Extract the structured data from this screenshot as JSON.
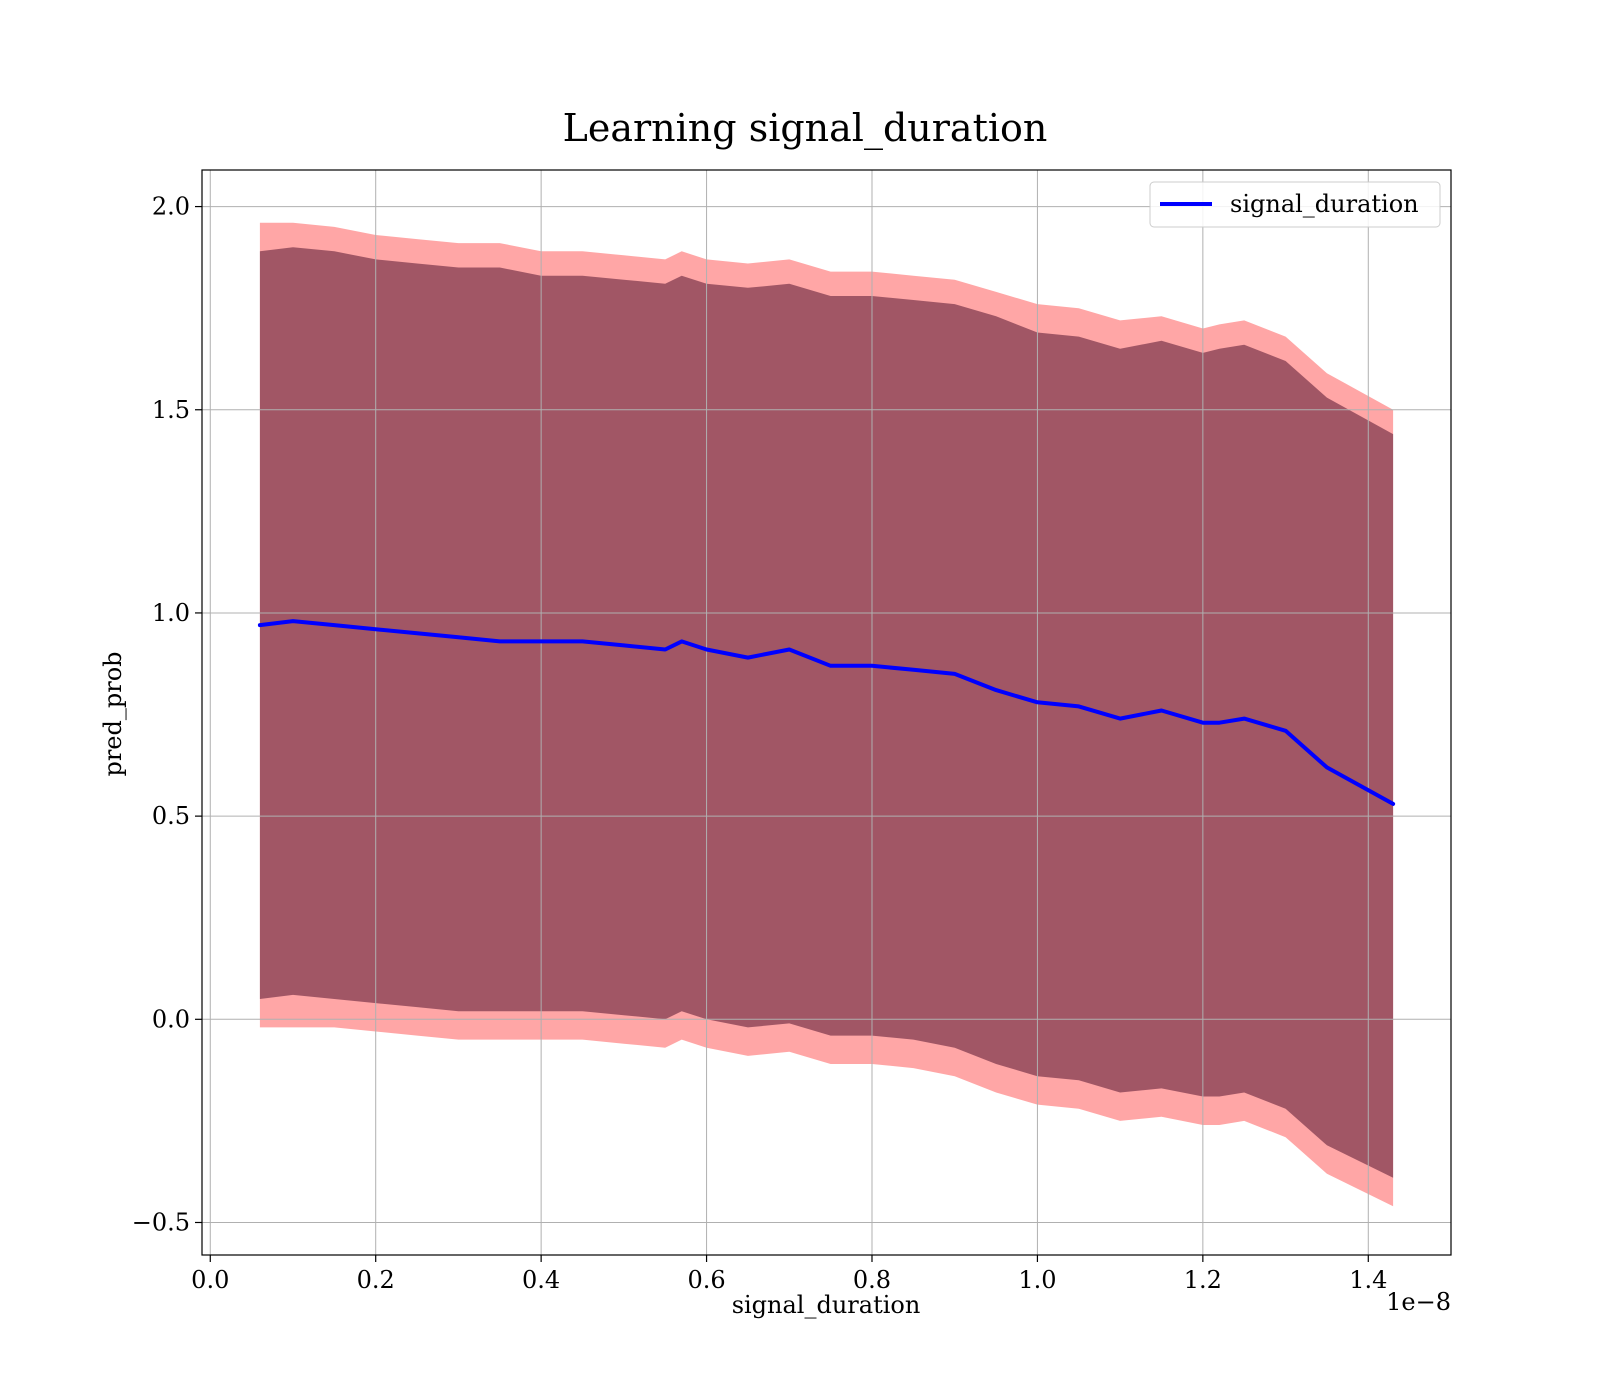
{
  "chart_data": {
    "type": "line",
    "title": "Learning signal_duration",
    "xlabel": "signal_duration",
    "ylabel": "pred_prob",
    "x_offset_label": "1e−8",
    "xlim": [
      -0.01,
      1.5
    ],
    "ylim": [
      -0.58,
      2.09
    ],
    "x_ticks": [
      0.0,
      0.2,
      0.4,
      0.6,
      0.8,
      1.0,
      1.2,
      1.4
    ],
    "x_tick_labels": [
      "0.0",
      "0.2",
      "0.4",
      "0.6",
      "0.8",
      "1.0",
      "1.2",
      "1.4"
    ],
    "y_ticks": [
      -0.5,
      0.0,
      0.5,
      1.0,
      1.5,
      2.0
    ],
    "y_tick_labels": [
      "−0.5",
      "0.0",
      "0.5",
      "1.0",
      "1.5",
      "2.0"
    ],
    "grid": true,
    "legend_position": "top-right",
    "colors": {
      "line": "#0000ff",
      "band_outer": "#ff0000",
      "band_inner": "#4b0d2a",
      "grid": "#b0b0b0"
    },
    "x": [
      0.06,
      0.1,
      0.15,
      0.2,
      0.25,
      0.3,
      0.35,
      0.4,
      0.45,
      0.5,
      0.55,
      0.57,
      0.6,
      0.65,
      0.7,
      0.75,
      0.8,
      0.85,
      0.9,
      0.95,
      1.0,
      1.05,
      1.1,
      1.15,
      1.2,
      1.22,
      1.25,
      1.3,
      1.35,
      1.43
    ],
    "series": [
      {
        "name": "signal_duration",
        "values": [
          0.97,
          0.98,
          0.97,
          0.96,
          0.95,
          0.94,
          0.93,
          0.93,
          0.93,
          0.92,
          0.91,
          0.93,
          0.91,
          0.89,
          0.91,
          0.87,
          0.87,
          0.86,
          0.85,
          0.81,
          0.78,
          0.77,
          0.74,
          0.76,
          0.73,
          0.73,
          0.74,
          0.71,
          0.62,
          0.53
        ],
        "outer_upper": [
          1.96,
          1.96,
          1.95,
          1.93,
          1.92,
          1.91,
          1.91,
          1.89,
          1.89,
          1.88,
          1.87,
          1.89,
          1.87,
          1.86,
          1.87,
          1.84,
          1.84,
          1.83,
          1.82,
          1.79,
          1.76,
          1.75,
          1.72,
          1.73,
          1.7,
          1.71,
          1.72,
          1.68,
          1.59,
          1.5
        ],
        "outer_lower": [
          -0.02,
          -0.02,
          -0.02,
          -0.03,
          -0.04,
          -0.05,
          -0.05,
          -0.05,
          -0.05,
          -0.06,
          -0.07,
          -0.05,
          -0.07,
          -0.09,
          -0.08,
          -0.11,
          -0.11,
          -0.12,
          -0.14,
          -0.18,
          -0.21,
          -0.22,
          -0.25,
          -0.24,
          -0.26,
          -0.26,
          -0.25,
          -0.29,
          -0.38,
          -0.46
        ],
        "inner_upper": [
          1.89,
          1.9,
          1.89,
          1.87,
          1.86,
          1.85,
          1.85,
          1.83,
          1.83,
          1.82,
          1.81,
          1.83,
          1.81,
          1.8,
          1.81,
          1.78,
          1.78,
          1.77,
          1.76,
          1.73,
          1.69,
          1.68,
          1.65,
          1.67,
          1.64,
          1.65,
          1.66,
          1.62,
          1.53,
          1.44
        ],
        "inner_lower": [
          0.05,
          0.06,
          0.05,
          0.04,
          0.03,
          0.02,
          0.02,
          0.02,
          0.02,
          0.01,
          0.0,
          0.02,
          0.0,
          -0.02,
          -0.01,
          -0.04,
          -0.04,
          -0.05,
          -0.07,
          -0.11,
          -0.14,
          -0.15,
          -0.18,
          -0.17,
          -0.19,
          -0.19,
          -0.18,
          -0.22,
          -0.31,
          -0.39
        ]
      }
    ]
  }
}
